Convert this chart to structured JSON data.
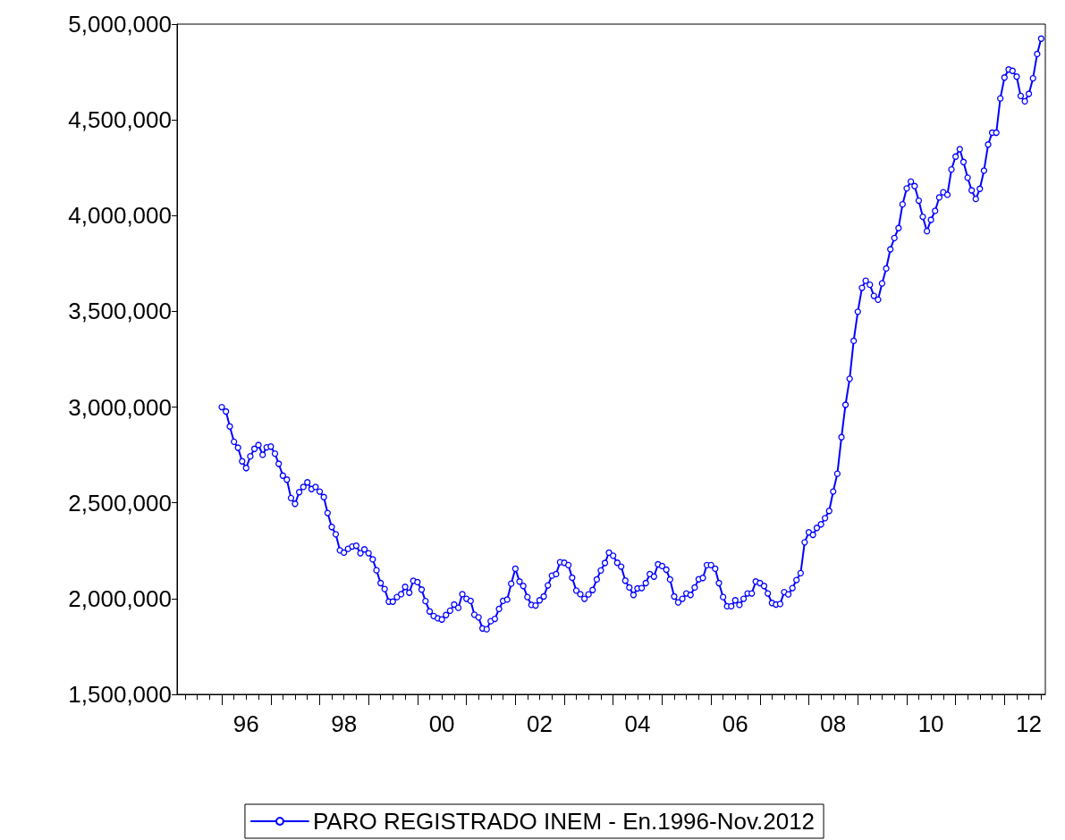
{
  "chart_data": {
    "type": "line",
    "marker": "circle",
    "line_style": "solid",
    "grid": false,
    "legend": "bottom",
    "xlim": [
      "1995-02",
      "2012-11"
    ],
    "ylim": [
      1500000,
      5000000
    ],
    "yticks": [
      {
        "value": 1500000,
        "label": "1,500,000"
      },
      {
        "value": 2000000,
        "label": "2,000,000"
      },
      {
        "value": 2500000,
        "label": "2,500,000"
      },
      {
        "value": 3000000,
        "label": "3,000,000"
      },
      {
        "value": 3500000,
        "label": "3,500,000"
      },
      {
        "value": 4000000,
        "label": "4,000,000"
      },
      {
        "value": 4500000,
        "label": "4,500,000"
      },
      {
        "value": 5000000,
        "label": "5,000,000"
      }
    ],
    "xticks": [
      {
        "value": "1995-04",
        "label": null
      },
      {
        "value": "1995-07",
        "label": null
      },
      {
        "value": "1995-10",
        "label": null
      },
      {
        "value": "1996-01",
        "label": null
      },
      {
        "value": "1996-04",
        "label": null
      },
      {
        "value": "1996-07",
        "label": "96"
      },
      {
        "value": "1996-10",
        "label": null
      },
      {
        "value": "1997-01",
        "label": null
      },
      {
        "value": "1997-04",
        "label": null
      },
      {
        "value": "1997-07",
        "label": null
      },
      {
        "value": "1997-10",
        "label": null
      },
      {
        "value": "1998-01",
        "label": null
      },
      {
        "value": "1998-04",
        "label": null
      },
      {
        "value": "1998-07",
        "label": "98"
      },
      {
        "value": "1998-10",
        "label": null
      },
      {
        "value": "1999-01",
        "label": null
      },
      {
        "value": "1999-04",
        "label": null
      },
      {
        "value": "1999-07",
        "label": null
      },
      {
        "value": "1999-10",
        "label": null
      },
      {
        "value": "2000-01",
        "label": null
      },
      {
        "value": "2000-04",
        "label": null
      },
      {
        "value": "2000-07",
        "label": "00"
      },
      {
        "value": "2000-10",
        "label": null
      },
      {
        "value": "2001-01",
        "label": null
      },
      {
        "value": "2001-04",
        "label": null
      },
      {
        "value": "2001-07",
        "label": null
      },
      {
        "value": "2001-10",
        "label": null
      },
      {
        "value": "2002-01",
        "label": null
      },
      {
        "value": "2002-04",
        "label": null
      },
      {
        "value": "2002-07",
        "label": "02"
      },
      {
        "value": "2002-10",
        "label": null
      },
      {
        "value": "2003-01",
        "label": null
      },
      {
        "value": "2003-04",
        "label": null
      },
      {
        "value": "2003-07",
        "label": null
      },
      {
        "value": "2003-10",
        "label": null
      },
      {
        "value": "2004-01",
        "label": null
      },
      {
        "value": "2004-04",
        "label": null
      },
      {
        "value": "2004-07",
        "label": "04"
      },
      {
        "value": "2004-10",
        "label": null
      },
      {
        "value": "2005-01",
        "label": null
      },
      {
        "value": "2005-04",
        "label": null
      },
      {
        "value": "2005-07",
        "label": null
      },
      {
        "value": "2005-10",
        "label": null
      },
      {
        "value": "2006-01",
        "label": null
      },
      {
        "value": "2006-04",
        "label": null
      },
      {
        "value": "2006-07",
        "label": "06"
      },
      {
        "value": "2006-10",
        "label": null
      },
      {
        "value": "2007-01",
        "label": null
      },
      {
        "value": "2007-04",
        "label": null
      },
      {
        "value": "2007-07",
        "label": null
      },
      {
        "value": "2007-10",
        "label": null
      },
      {
        "value": "2008-01",
        "label": null
      },
      {
        "value": "2008-04",
        "label": null
      },
      {
        "value": "2008-07",
        "label": "08"
      },
      {
        "value": "2008-10",
        "label": null
      },
      {
        "value": "2009-01",
        "label": null
      },
      {
        "value": "2009-04",
        "label": null
      },
      {
        "value": "2009-07",
        "label": null
      },
      {
        "value": "2009-10",
        "label": null
      },
      {
        "value": "2010-01",
        "label": null
      },
      {
        "value": "2010-04",
        "label": null
      },
      {
        "value": "2010-07",
        "label": "10"
      },
      {
        "value": "2010-10",
        "label": null
      },
      {
        "value": "2011-01",
        "label": null
      },
      {
        "value": "2011-04",
        "label": null
      },
      {
        "value": "2011-07",
        "label": null
      },
      {
        "value": "2011-10",
        "label": null
      },
      {
        "value": "2012-01",
        "label": null
      },
      {
        "value": "2012-04",
        "label": null
      },
      {
        "value": "2012-07",
        "label": "12"
      },
      {
        "value": "2012-10",
        "label": null
      }
    ],
    "x": [
      "1996-01",
      "1996-02",
      "1996-03",
      "1996-04",
      "1996-05",
      "1996-06",
      "1996-07",
      "1996-08",
      "1996-09",
      "1996-10",
      "1996-11",
      "1996-12",
      "1997-01",
      "1997-02",
      "1997-03",
      "1997-04",
      "1997-05",
      "1997-06",
      "1997-07",
      "1997-08",
      "1997-09",
      "1997-10",
      "1997-11",
      "1997-12",
      "1998-01",
      "1998-02",
      "1998-03",
      "1998-04",
      "1998-05",
      "1998-06",
      "1998-07",
      "1998-08",
      "1998-09",
      "1998-10",
      "1998-11",
      "1998-12",
      "1999-01",
      "1999-02",
      "1999-03",
      "1999-04",
      "1999-05",
      "1999-06",
      "1999-07",
      "1999-08",
      "1999-09",
      "1999-10",
      "1999-11",
      "1999-12",
      "2000-01",
      "2000-02",
      "2000-03",
      "2000-04",
      "2000-05",
      "2000-06",
      "2000-07",
      "2000-08",
      "2000-09",
      "2000-10",
      "2000-11",
      "2000-12",
      "2001-01",
      "2001-02",
      "2001-03",
      "2001-04",
      "2001-05",
      "2001-06",
      "2001-07",
      "2001-08",
      "2001-09",
      "2001-10",
      "2001-11",
      "2001-12",
      "2002-01",
      "2002-02",
      "2002-03",
      "2002-04",
      "2002-05",
      "2002-06",
      "2002-07",
      "2002-08",
      "2002-09",
      "2002-10",
      "2002-11",
      "2002-12",
      "2003-01",
      "2003-02",
      "2003-03",
      "2003-04",
      "2003-05",
      "2003-06",
      "2003-07",
      "2003-08",
      "2003-09",
      "2003-10",
      "2003-11",
      "2003-12",
      "2004-01",
      "2004-02",
      "2004-03",
      "2004-04",
      "2004-05",
      "2004-06",
      "2004-07",
      "2004-08",
      "2004-09",
      "2004-10",
      "2004-11",
      "2004-12",
      "2005-01",
      "2005-02",
      "2005-03",
      "2005-04",
      "2005-05",
      "2005-06",
      "2005-07",
      "2005-08",
      "2005-09",
      "2005-10",
      "2005-11",
      "2005-12",
      "2006-01",
      "2006-02",
      "2006-03",
      "2006-04",
      "2006-05",
      "2006-06",
      "2006-07",
      "2006-08",
      "2006-09",
      "2006-10",
      "2006-11",
      "2006-12",
      "2007-01",
      "2007-02",
      "2007-03",
      "2007-04",
      "2007-05",
      "2007-06",
      "2007-07",
      "2007-08",
      "2007-09",
      "2007-10",
      "2007-11",
      "2007-12",
      "2008-01",
      "2008-02",
      "2008-03",
      "2008-04",
      "2008-05",
      "2008-06",
      "2008-07",
      "2008-08",
      "2008-09",
      "2008-10",
      "2008-11",
      "2008-12",
      "2009-01",
      "2009-02",
      "2009-03",
      "2009-04",
      "2009-05",
      "2009-06",
      "2009-07",
      "2009-08",
      "2009-09",
      "2009-10",
      "2009-11",
      "2009-12",
      "2010-01",
      "2010-02",
      "2010-03",
      "2010-04",
      "2010-05",
      "2010-06",
      "2010-07",
      "2010-08",
      "2010-09",
      "2010-10",
      "2010-11",
      "2010-12",
      "2011-01",
      "2011-02",
      "2011-03",
      "2011-04",
      "2011-05",
      "2011-06",
      "2011-07",
      "2011-08",
      "2011-09",
      "2011-10",
      "2011-11",
      "2011-12",
      "2012-01",
      "2012-02",
      "2012-03",
      "2012-04",
      "2012-05",
      "2012-06",
      "2012-07",
      "2012-08",
      "2012-09",
      "2012-10"
    ],
    "series": [
      {
        "name": "PARO REGISTRADO INEM - En.1996-Nov.2012",
        "color": "#0000ff",
        "values": [
          3000000,
          2977000,
          2899000,
          2819000,
          2788000,
          2717000,
          2682000,
          2743000,
          2782000,
          2802000,
          2751000,
          2790000,
          2794000,
          2757000,
          2704000,
          2642000,
          2621000,
          2525000,
          2495000,
          2556000,
          2583000,
          2607000,
          2572000,
          2583000,
          2559000,
          2530000,
          2447000,
          2374000,
          2336000,
          2252000,
          2240000,
          2260000,
          2272000,
          2276000,
          2237000,
          2257000,
          2237000,
          2205000,
          2148000,
          2081000,
          2050000,
          1984000,
          1984000,
          2008000,
          2023000,
          2061000,
          2031000,
          2093000,
          2086000,
          2047000,
          1987000,
          1933000,
          1909000,
          1897000,
          1891000,
          1914000,
          1937000,
          1969000,
          1952000,
          2023000,
          1999000,
          1988000,
          1916000,
          1902000,
          1844000,
          1840000,
          1882000,
          1894000,
          1946000,
          1988000,
          1995000,
          2078000,
          2156000,
          2089000,
          2066000,
          2008000,
          1967000,
          1964000,
          1991000,
          2011000,
          2069000,
          2120000,
          2128000,
          2190000,
          2187000,
          2175000,
          2109000,
          2042000,
          2023000,
          1999000,
          2022000,
          2045000,
          2100000,
          2147000,
          2186000,
          2240000,
          2224000,
          2187000,
          2167000,
          2094000,
          2058000,
          2019000,
          2053000,
          2055000,
          2081000,
          2128000,
          2115000,
          2179000,
          2170000,
          2151000,
          2100000,
          2011000,
          1980000,
          1999000,
          2027000,
          2019000,
          2058000,
          2101000,
          2108000,
          2175000,
          2175000,
          2156000,
          2081000,
          2008000,
          1960000,
          1960000,
          1991000,
          1967000,
          1999000,
          2027000,
          2027000,
          2089000,
          2081000,
          2066000,
          2027000,
          1977000,
          1969000,
          1972000,
          2034000,
          2022000,
          2055000,
          2097000,
          2133000,
          2294000,
          2346000,
          2333000,
          2369000,
          2388000,
          2420000,
          2458000,
          2559000,
          2652000,
          2843000,
          3012000,
          3148000,
          3346000,
          3498000,
          3623000,
          3660000,
          3639000,
          3581000,
          3561000,
          3646000,
          3724000,
          3824000,
          3883000,
          3935000,
          4059000,
          4142000,
          4178000,
          4154000,
          4078000,
          3994000,
          3919000,
          3978000,
          4025000,
          4095000,
          4122000,
          4109000,
          4241000,
          4308000,
          4347000,
          4280000,
          4198000,
          4132000,
          4087000,
          4140000,
          4235000,
          4371000,
          4433000,
          4433000,
          4612000,
          4721000,
          4763000,
          4756000,
          4726000,
          4625000,
          4597000,
          4636000,
          4717000,
          4844000,
          4924000
        ]
      }
    ]
  }
}
